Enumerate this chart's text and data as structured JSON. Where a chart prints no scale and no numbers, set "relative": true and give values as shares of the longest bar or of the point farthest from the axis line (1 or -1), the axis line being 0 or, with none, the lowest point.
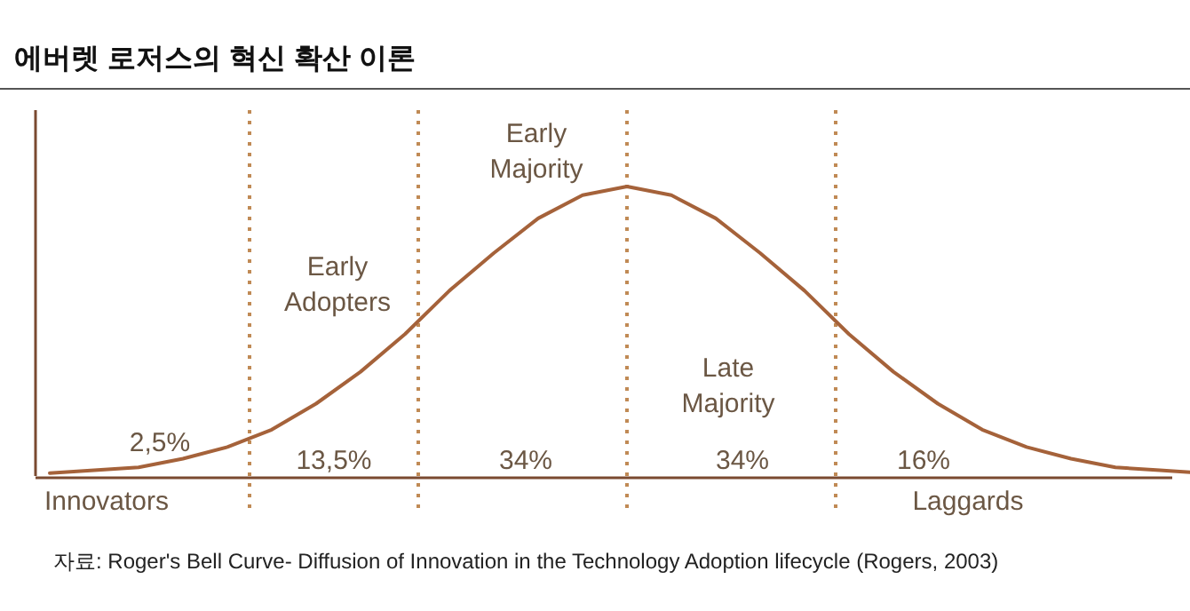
{
  "chart_data": {
    "type": "line",
    "title": "에버렛 로저스의 혁신 확산 이론",
    "relative": true,
    "categories": [
      null,
      null,
      null,
      null,
      null,
      null,
      null,
      null,
      null,
      null,
      null,
      null,
      null,
      null,
      null,
      null,
      null,
      null,
      null,
      null,
      null,
      null,
      null,
      null,
      null,
      null,
      null
    ],
    "series": [
      {
        "color": "#a5623a",
        "values": [
          0.01,
          0.02,
          0.03,
          0.06,
          0.1,
          0.16,
          0.25,
          0.36,
          0.49,
          0.64,
          0.77,
          0.89,
          0.97,
          1,
          0.97,
          0.89,
          0.77,
          0.64,
          0.49,
          0.36,
          0.25,
          0.16,
          0.1,
          0.06,
          0.03,
          0.02,
          0.01
        ]
      }
    ],
    "annotations": [
      "Early Adopters",
      "Early Majority",
      "Late Majority",
      "2,5%",
      "13,5%",
      "34%",
      "34%",
      "16%",
      "Innovators",
      "Laggards",
      "자료: Roger's Bell Curve- Diffusion of Innovation in the Technology Adoption lifecycle (Rogers, 2003)"
    ]
  }
}
